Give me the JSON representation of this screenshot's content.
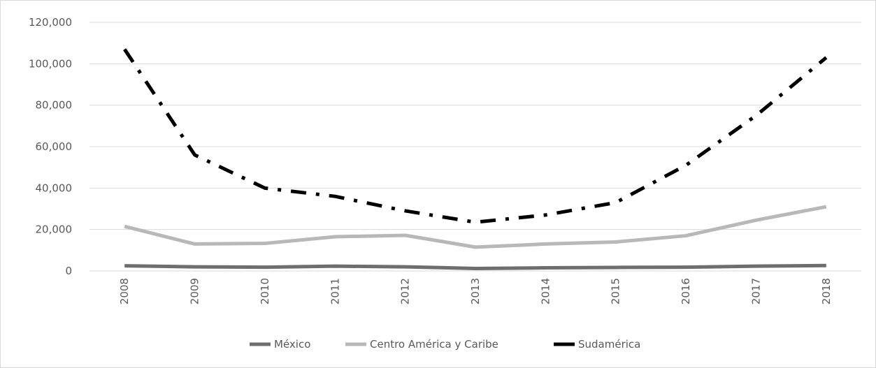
{
  "chart_data": {
    "type": "line",
    "categories": [
      "2008",
      "2009",
      "2010",
      "2011",
      "2012",
      "2013",
      "2014",
      "2015",
      "2016",
      "2017",
      "2018"
    ],
    "ylim": [
      0,
      120000
    ],
    "y_ticks": [
      0,
      20000,
      40000,
      60000,
      80000,
      100000,
      120000
    ],
    "y_tick_labels": [
      "0",
      "20,000",
      "40,000",
      "60,000",
      "80,000",
      "100,000",
      "120,000"
    ],
    "grid": true,
    "legend_position": "bottom",
    "series": [
      {
        "name": "México",
        "color": "#6e6e6e",
        "style": "solid",
        "values": [
          2500,
          2000,
          1800,
          2300,
          2000,
          1200,
          1500,
          1700,
          1800,
          2300,
          2600
        ]
      },
      {
        "name": "Centro América y Caribe",
        "color": "#b8b8b8",
        "style": "solid",
        "values": [
          21500,
          13000,
          13300,
          16500,
          17200,
          11500,
          13000,
          14000,
          17000,
          24500,
          31000
        ]
      },
      {
        "name": "Sudamérica",
        "color": "#000000",
        "style": "dashdot",
        "values": [
          107000,
          56000,
          40000,
          36000,
          29000,
          23500,
          27000,
          33000,
          51000,
          75000,
          103000
        ]
      }
    ]
  }
}
